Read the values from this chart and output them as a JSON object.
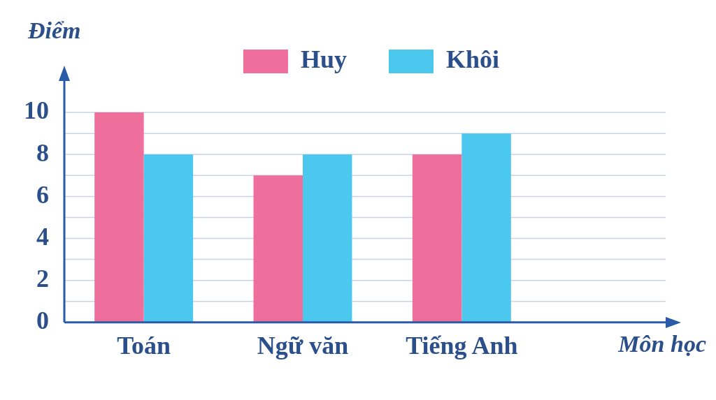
{
  "chart_data": {
    "type": "bar",
    "xlabel": "Môn học",
    "ylabel": "Điểm",
    "categories": [
      "Toán",
      "Ngữ văn",
      "Tiếng Anh"
    ],
    "series": [
      {
        "name": "Huy",
        "color": "#ee6f9c",
        "values": [
          10,
          7,
          8
        ]
      },
      {
        "name": "Khôi",
        "color": "#4cc8ef",
        "values": [
          8,
          8,
          9
        ]
      }
    ],
    "ylim": [
      0,
      11.5
    ],
    "yticks": [
      0,
      {
        "value": 1,
        "label": null
      },
      2,
      {
        "value": 3,
        "label": null
      },
      4,
      {
        "value": 5,
        "label": null
      },
      6,
      {
        "value": 7,
        "label": null
      },
      8,
      {
        "value": 9,
        "label": null
      },
      10
    ],
    "grid": "y",
    "legend": "top"
  }
}
